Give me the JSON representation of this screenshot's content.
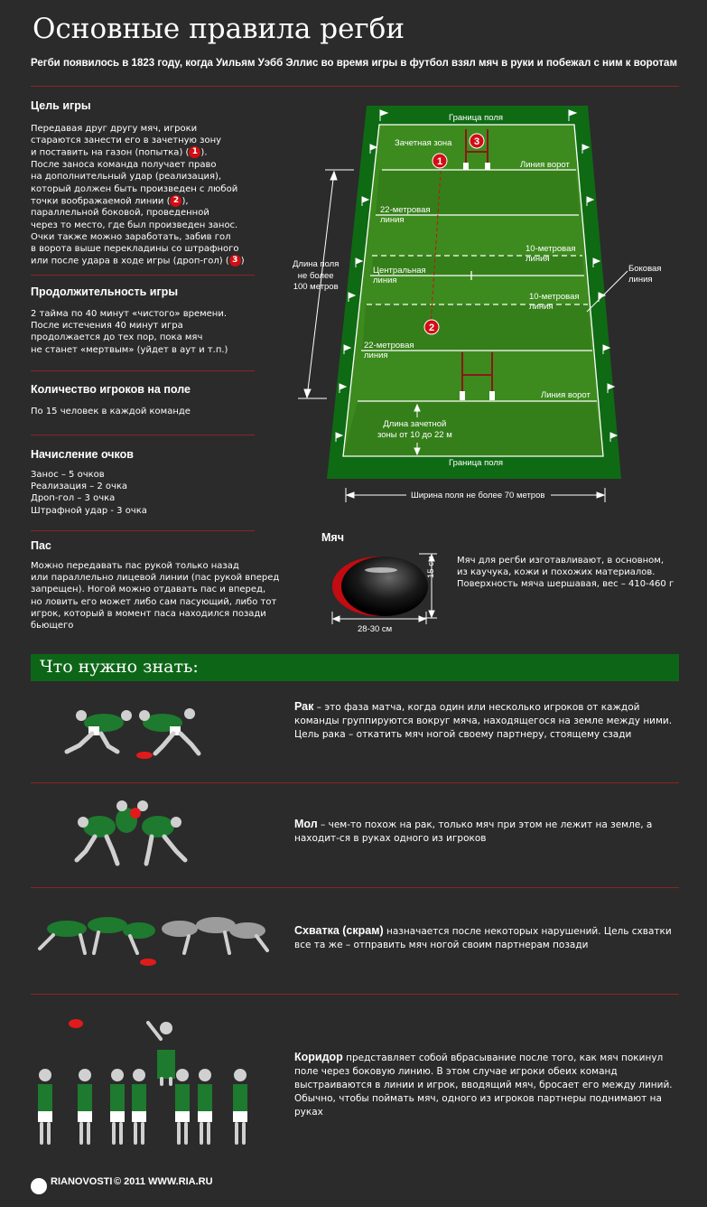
{
  "header": {
    "title": "Основные правила регби",
    "subtitle": "Регби появилось в 1823 году, когда Уильям Уэбб Эллис во время игры в футбол взял мяч в руки и побежал с ним к воротам"
  },
  "sections": {
    "goal": {
      "title": "Цель игры",
      "lines": [
        "Передавая друг другу мяч, игроки",
        "стараются занести его в зачетную зону",
        "и поставить на газон (попытка) (",
        "После заноса команда получает право",
        "на дополнительный удар (реализация),",
        "который должен быть произведен с любой",
        "точки воображаемой линии (",
        "параллельной боковой, проведенной",
        "через то место, где был произведен занос.",
        "Очки также можно заработать, забив гол",
        "в ворота выше перекладины со штрафного",
        "или после удара в ходе игры (дроп-гол) ("
      ],
      "badge1": "1",
      "badge2": "2",
      "badge3": "3",
      "after1": ").",
      "after2": "),",
      "after3": ")"
    },
    "duration": {
      "title": "Продолжительность игры",
      "text": "2 тайма по 40 минут «чистого» времени.\nПосле истечения 40 минут игра\nпродолжается до тех пор, пока мяч\nне станет «мертвым» (уйдет в аут и т.п.)"
    },
    "players": {
      "title": "Количество игроков на поле",
      "text": "По 15 человек в каждой команде"
    },
    "points": {
      "title": "Начисление очков",
      "text": "Занос – 5 очков\nРеализация – 2 очка\nДроп-гол – 3 очка\nШтрафной удар - 3 очка"
    },
    "pass": {
      "title": "Пас",
      "text": "Можно передавать пас рукой только назад\nили параллельно лицевой линии (пас рукой вперед\nзапрещен). Ногой можно отдавать пас и вперед,\nно ловить его может либо сам пасующий, либо тот\nигрок, который в момент паса находился позади\nбьющего"
    }
  },
  "field": {
    "boundary_top": "Граница поля",
    "boundary_bottom": "Граница поля",
    "in_goal": "Зачетная зона",
    "goal_line": "Линия ворот",
    "goal_line_bottom": "Линия ворот",
    "line22_top": "22-метровая\nлиния",
    "line22_bottom": "22-метровая\nлиния",
    "line10_top": "10-метровая\nлиния",
    "line10_bottom": "10-метровая\nлиния",
    "center_line": "Центральная\nлиния",
    "touch_line": "Боковая\nлиния",
    "length": "Длина поля\nне более\n100 метров",
    "in_goal_length": "Длина зачетной\nзоны от 10 до 22 м",
    "width": "Ширина поля не более 70 метров",
    "markers": [
      "3",
      "1",
      "2"
    ]
  },
  "ball": {
    "title": "Мяч",
    "height": "15 см",
    "length": "28-30 см",
    "text": "Мяч для регби изготавливают, в основном,\nиз каучука, кожи и похожих материалов.\nПоверхность мяча шершавая,  вес – 410-460 г"
  },
  "know": {
    "title": "Что нужно знать:",
    "items": [
      {
        "term": "Рак",
        "text": " – это фаза матча, когда один или несколько игроков от каждой команды группируются вокруг мяча, находящегося на земле между ними. Цель рака – откатить мяч ногой своему партнеру, стоящему сзади"
      },
      {
        "term": "Мол",
        "text": " – чем-то похож на рак, только мяч при этом не лежит на земле, а находит-ся в руках одного из игроков"
      },
      {
        "term": "Схватка (скрам)",
        "text": " назначается после некоторых нарушений. Цель схватки все та же – отправить мяч ногой своим партнерам позади"
      },
      {
        "term": "Коридор",
        "text": " представляет собой вбрасывание после того, как мяч покинул поле через боковую линию. В этом случае игроки обеих команд выстраиваются в линии и игрок, вводящий мяч, бросает его между линий. Обычно, чтобы поймать мяч, одного из игроков партнеры поднимают на руках"
      }
    ]
  },
  "footer": {
    "brand": "RIANOVOSTI",
    "copyright": "© 2011 WWW.RIA.RU"
  },
  "colors": {
    "background": "#2b2b2b",
    "green_bar": "#0d6617",
    "field_outer": "#0f6a14",
    "field_inner": "#3d8b1e",
    "accent_red": "#d10d14",
    "divider": "#8a2525"
  }
}
